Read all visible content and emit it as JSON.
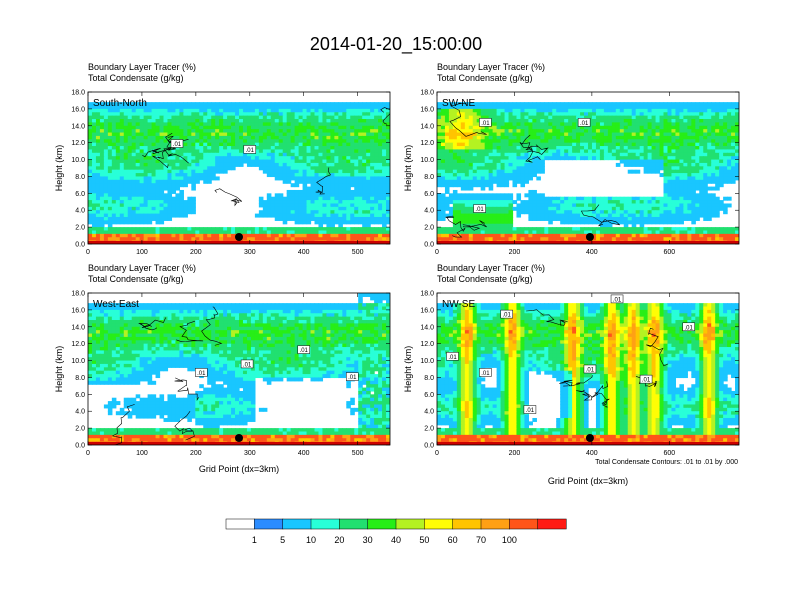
{
  "figure": {
    "title": "2014-01-20_15:00:00",
    "contour_note": "Total Condensate Contours: .01 to .01 by .000",
    "colors": {
      "bg": "#ffffff",
      "white_bin": "#ffffff",
      "ground": "#cc0000"
    }
  },
  "colorbar": {
    "levels": [
      0,
      1,
      5,
      10,
      20,
      30,
      40,
      50,
      60,
      70,
      100
    ],
    "colors": [
      "#ffffff",
      "#2b8cff",
      "#19c6ff",
      "#28ffd8",
      "#21e070",
      "#27ee17",
      "#b4f222",
      "#fffd05",
      "#ffc400",
      "#ffa014",
      "#ff5519",
      "#ff1b14"
    ],
    "labels": [
      "1",
      "5",
      "10",
      "20",
      "30",
      "40",
      "50",
      "60",
      "70",
      "100"
    ]
  },
  "chart_data": [
    {
      "type": "heatmap",
      "name": "south-north",
      "panel_label": "South-North",
      "subtitle_line1": "Boundary Layer Tracer   (%)",
      "subtitle_line2": "Total Condensate   (g/kg)",
      "xlabel": "",
      "ylabel": "Height (km)",
      "xlim": [
        0,
        560
      ],
      "ylim": [
        0,
        18
      ],
      "xticks": [
        "0",
        "100",
        "200",
        "300",
        "400",
        "500"
      ],
      "xtick_values": [
        0,
        100,
        200,
        300,
        400,
        500
      ],
      "yticks": [
        "0.0",
        "2.0",
        "4.0",
        "6.0",
        "8.0",
        "10.0",
        "12.0",
        "14.0",
        "16.0",
        "18.0"
      ],
      "marker_x": 280,
      "contour_labels": [
        ".01",
        ".01"
      ],
      "contour_label_pos": [
        [
          165,
          11.9
        ],
        [
          300,
          11.2
        ]
      ],
      "seed": 11
    },
    {
      "type": "heatmap",
      "name": "sw-ne",
      "panel_label": "SW-NE",
      "subtitle_line1": "Boundary Layer Tracer   (%)",
      "subtitle_line2": "Total Condensate   (g/kg)",
      "xlabel": "",
      "ylabel": "Height (km)",
      "xlim": [
        0,
        780
      ],
      "ylim": [
        0,
        18
      ],
      "xticks": [
        "0",
        "200",
        "400",
        "600"
      ],
      "xtick_values": [
        0,
        200,
        400,
        600
      ],
      "yticks": [
        "0.0",
        "2.0",
        "4.0",
        "6.0",
        "8.0",
        "10.0",
        "12.0",
        "14.0",
        "16.0",
        "18.0"
      ],
      "marker_x": 395,
      "contour_labels": [
        ".01",
        ".01",
        ".01"
      ],
      "contour_label_pos": [
        [
          125,
          14.4
        ],
        [
          380,
          14.4
        ],
        [
          110,
          4.2
        ]
      ],
      "seed": 23
    },
    {
      "type": "heatmap",
      "name": "west-east",
      "panel_label": "West-East",
      "subtitle_line1": "Boundary Layer Tracer   (%)",
      "subtitle_line2": "Total Condensate   (g/kg)",
      "xlabel": "Grid Point (dx=3km)",
      "ylabel": "Height (km)",
      "xlim": [
        0,
        560
      ],
      "ylim": [
        0,
        18
      ],
      "xticks": [
        "0",
        "100",
        "200",
        "300",
        "400",
        "500"
      ],
      "xtick_values": [
        0,
        100,
        200,
        300,
        400,
        500
      ],
      "yticks": [
        "0.0",
        "2.0",
        "4.0",
        "6.0",
        "8.0",
        "10.0",
        "12.0",
        "14.0",
        "16.0",
        "18.0"
      ],
      "marker_x": 280,
      "contour_labels": [
        ".01",
        ".01",
        ".01",
        ".01"
      ],
      "contour_label_pos": [
        [
          210,
          8.6
        ],
        [
          295,
          9.6
        ],
        [
          400,
          11.3
        ],
        [
          490,
          8.1
        ]
      ],
      "seed": 37
    },
    {
      "type": "heatmap",
      "name": "nw-se",
      "panel_label": "NW-SE",
      "subtitle_line1": "Boundary Layer Tracer   (%)",
      "subtitle_line2": "Total Condensate   (g/kg)",
      "xlabel": "Grid Point (dx=3km)",
      "ylabel": "Height (km)",
      "xlim": [
        0,
        780
      ],
      "ylim": [
        0,
        18
      ],
      "xticks": [
        "0",
        "200",
        "400",
        "600"
      ],
      "xtick_values": [
        0,
        200,
        400,
        600
      ],
      "yticks": [
        "0.0",
        "2.0",
        "4.0",
        "6.0",
        "8.0",
        "10.0",
        "12.0",
        "14.0",
        "16.0",
        "18.0"
      ],
      "marker_x": 395,
      "contour_labels": [
        ".01",
        ".01",
        ".01",
        ".01",
        ".01",
        ".01",
        ".01",
        ".01"
      ],
      "contour_label_pos": [
        [
          180,
          15.5
        ],
        [
          40,
          10.5
        ],
        [
          125,
          8.6
        ],
        [
          395,
          9.0
        ],
        [
          540,
          7.8
        ],
        [
          465,
          17.3
        ],
        [
          650,
          14.0
        ],
        [
          240,
          4.2
        ]
      ],
      "seed": 53
    }
  ]
}
